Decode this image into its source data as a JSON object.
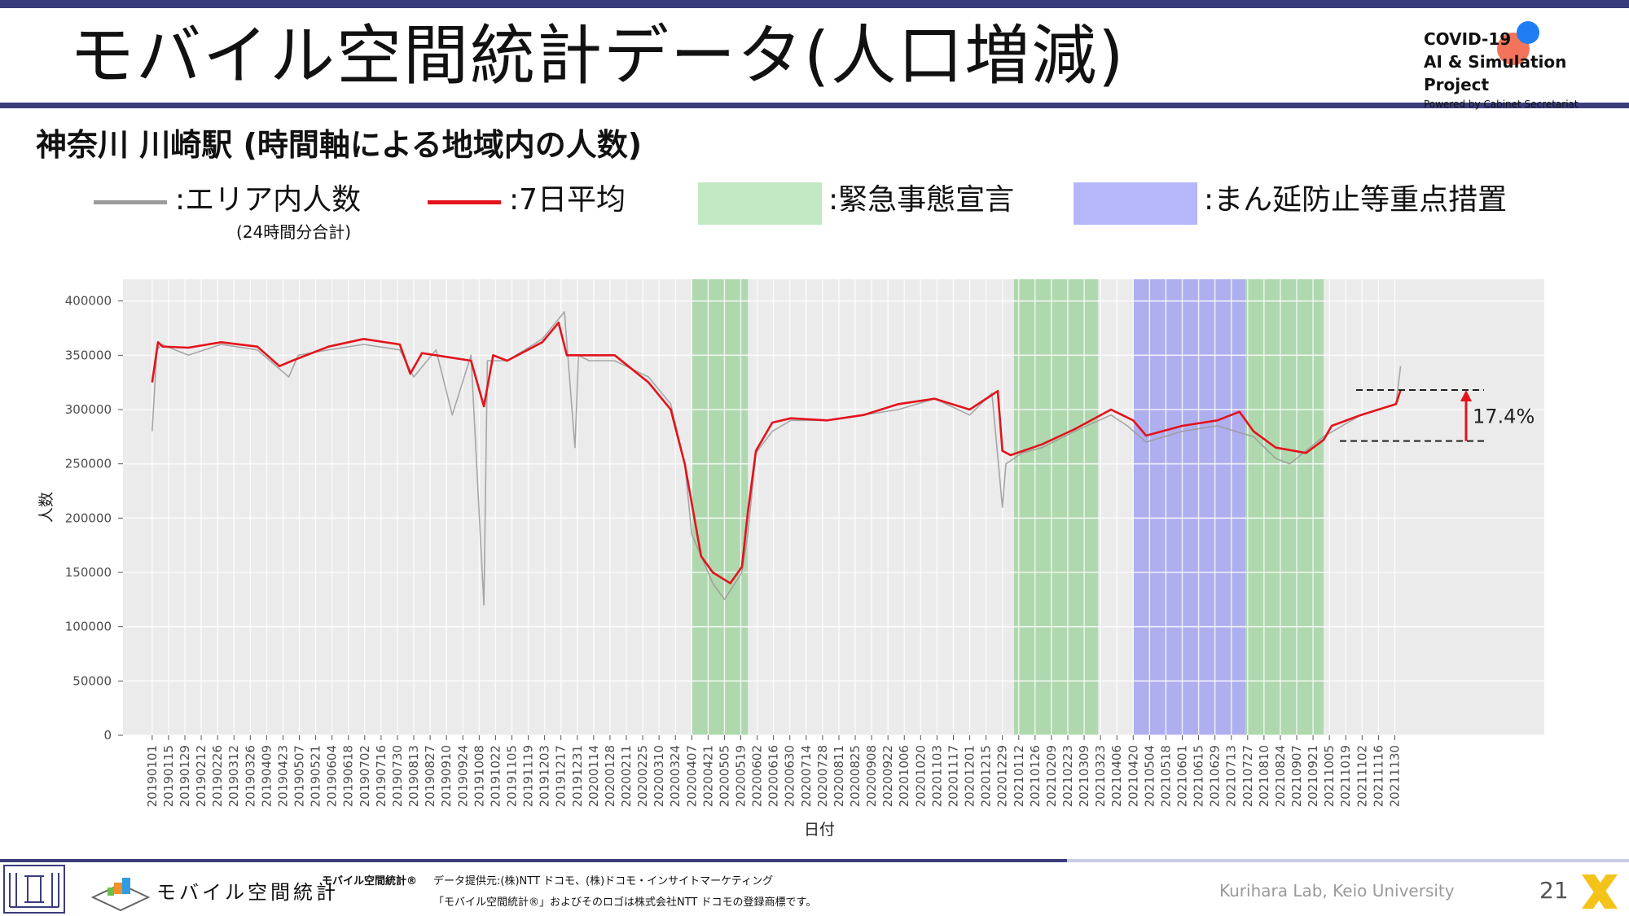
{
  "header": {
    "title": "モバイル空間統計データ(人口増減)",
    "project_line1": "COVID-19",
    "project_line2": "AI & Simulation Project",
    "project_line3": "Powered by Cabinet Secretariat"
  },
  "subtitle": "神奈川 川崎駅 (時間軸による地域内の人数)",
  "legend": {
    "area": ":エリア内人数",
    "area_note": "(24時間分合計)",
    "avg": ":7日平均",
    "emergency": ":緊急事態宣言",
    "priority": ":まん延防止等重点措置"
  },
  "colors": {
    "raw": "#9a9a9a",
    "avg": "#e3131b",
    "emergency": "#a9d6a9",
    "priority": "#a8a8f0",
    "panel": "#ebebeb",
    "accent": "#3a3d7c"
  },
  "chart_data": {
    "type": "line",
    "xlabel": "日付",
    "ylabel": "人数",
    "ylim": [
      0,
      420000
    ],
    "yticks": [
      0,
      50000,
      100000,
      150000,
      200000,
      250000,
      300000,
      350000,
      400000
    ],
    "xlim": [
      "20181207",
      "20220407"
    ],
    "grid": true,
    "legend_position": "top",
    "xtick_labels": [
      "20190101",
      "20190115",
      "20190129",
      "20190212",
      "20190226",
      "20190312",
      "20190326",
      "20190409",
      "20190423",
      "20190507",
      "20190521",
      "20190604",
      "20190618",
      "20190702",
      "20190716",
      "20190730",
      "20190813",
      "20190827",
      "20190910",
      "20190924",
      "20191008",
      "20191022",
      "20191105",
      "20191119",
      "20191203",
      "20191217",
      "20191231",
      "20200114",
      "20200128",
      "20200211",
      "20200225",
      "20200310",
      "20200324",
      "20200407",
      "20200421",
      "20200505",
      "20200519",
      "20200602",
      "20200616",
      "20200630",
      "20200714",
      "20200728",
      "20200811",
      "20200825",
      "20200908",
      "20200922",
      "20201006",
      "20201020",
      "20201103",
      "20201117",
      "20201201",
      "20201215",
      "20201229",
      "20210112",
      "20210126",
      "20210209",
      "20210223",
      "20210309",
      "20210323",
      "20210406",
      "20210420",
      "20210504",
      "20210518",
      "20210601",
      "20210615",
      "20210629",
      "20210713",
      "20210727",
      "20210810",
      "20210824",
      "20210907",
      "20210921",
      "20211005",
      "20211019",
      "20211102",
      "20211116",
      "20211130"
    ],
    "series": [
      {
        "name": "エリア内人数",
        "dates": [
          "20190101",
          "20190105",
          "20190109",
          "20190201",
          "20190301",
          "20190401",
          "20190428",
          "20190506",
          "20190601",
          "20190701",
          "20190801",
          "20190813",
          "20190901",
          "20190915",
          "20191001",
          "20191012",
          "20191015",
          "20191101",
          "20191201",
          "20191220",
          "20191225",
          "20191229",
          "20200101",
          "20200110",
          "20200201",
          "20200301",
          "20200320",
          "20200401",
          "20200407",
          "20200425",
          "20200505",
          "20200520",
          "20200525",
          "20200601",
          "20200615",
          "20200701",
          "20200801",
          "20200901",
          "20201001",
          "20201101",
          "20201201",
          "20201220",
          "20201229",
          "20210101",
          "20210115",
          "20210201",
          "20210301",
          "20210401",
          "20210415",
          "20210501",
          "20210601",
          "20210701",
          "20210801",
          "20210820",
          "20210901",
          "20210930",
          "20211101",
          "20211201",
          "20211205"
        ],
        "values": [
          280000,
          355000,
          360000,
          350000,
          360000,
          355000,
          330000,
          350000,
          355000,
          360000,
          355000,
          330000,
          355000,
          295000,
          350000,
          120000,
          345000,
          345000,
          365000,
          390000,
          320000,
          265000,
          350000,
          345000,
          345000,
          330000,
          305000,
          250000,
          185000,
          140000,
          125000,
          150000,
          185000,
          260000,
          280000,
          290000,
          290000,
          295000,
          300000,
          310000,
          295000,
          315000,
          210000,
          250000,
          260000,
          265000,
          280000,
          295000,
          285000,
          270000,
          280000,
          285000,
          275000,
          255000,
          250000,
          275000,
          295000,
          305000,
          340000
        ]
      },
      {
        "name": "7日平均",
        "dates": [
          "20190101",
          "20190106",
          "20190110",
          "20190201",
          "20190301",
          "20190401",
          "20190420",
          "20190501",
          "20190601",
          "20190701",
          "20190801",
          "20190810",
          "20190820",
          "20190901",
          "20191001",
          "20191012",
          "20191020",
          "20191101",
          "20191201",
          "20191215",
          "20191222",
          "20191229",
          "20200101",
          "20200201",
          "20200301",
          "20200320",
          "20200401",
          "20200415",
          "20200425",
          "20200510",
          "20200520",
          "20200525",
          "20200601",
          "20200615",
          "20200701",
          "20200801",
          "20200901",
          "20201001",
          "20201101",
          "20201201",
          "20201225",
          "20201229",
          "20210105",
          "20210201",
          "20210301",
          "20210401",
          "20210420",
          "20210501",
          "20210601",
          "20210701",
          "20210720",
          "20210801",
          "20210820",
          "20210915",
          "20210930",
          "20211007",
          "20211101",
          "20211201",
          "20211205"
        ],
        "values": [
          325000,
          362000,
          358000,
          357000,
          362000,
          358000,
          340000,
          345000,
          358000,
          365000,
          360000,
          333000,
          352000,
          350000,
          345000,
          303000,
          350000,
          345000,
          362000,
          380000,
          350000,
          350000,
          350000,
          350000,
          325000,
          300000,
          250000,
          165000,
          150000,
          140000,
          155000,
          205000,
          262000,
          288000,
          292000,
          290000,
          295000,
          305000,
          310000,
          300000,
          317000,
          262000,
          258000,
          268000,
          282000,
          300000,
          290000,
          276000,
          285000,
          290000,
          298000,
          280000,
          265000,
          260000,
          272000,
          285000,
          295000,
          305000,
          318000
        ]
      }
    ],
    "emergency_periods": [
      [
        "20200407",
        "20200525"
      ],
      [
        "20210108",
        "20210321"
      ],
      [
        "20210725",
        "20210930"
      ]
    ],
    "priority_periods": [
      [
        "20210420",
        "20210725"
      ]
    ],
    "annotation": {
      "label": "17.4%",
      "from_value": 271000,
      "to_value": 318000
    }
  },
  "footer": {
    "brand": "モバイル空間統計",
    "source_title": "モバイル空間統計®",
    "source_line1": "データ提供元:(株)NTT ドコモ、(株)ドコモ・インサイトマーケティング",
    "source_line2": "「モバイル空間統計®」およびそのロゴは株式会社NTT ドコモの登録商標です。",
    "lab": "Kurihara Lab, Keio University",
    "page": "21"
  }
}
